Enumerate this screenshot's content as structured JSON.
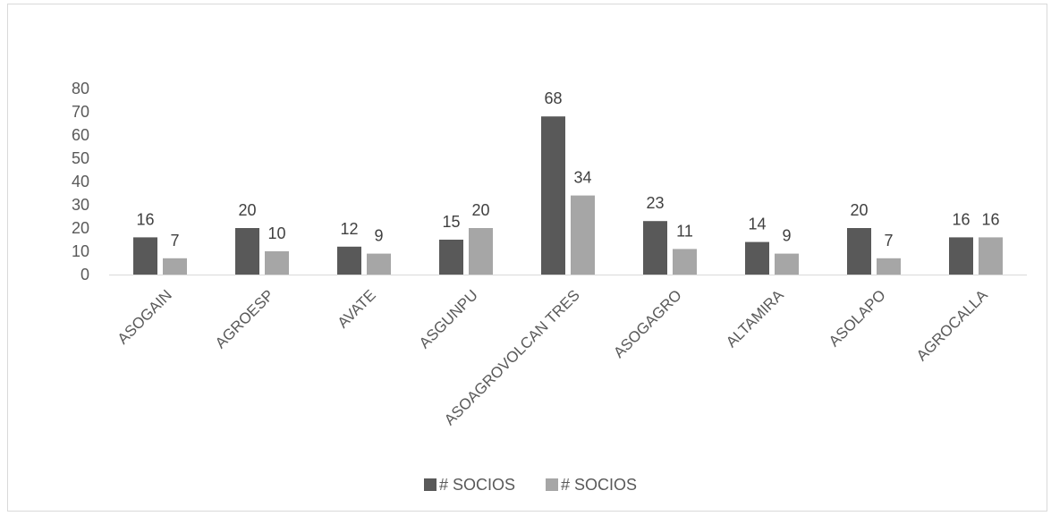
{
  "chart_data": {
    "type": "bar",
    "title": "",
    "xlabel": "",
    "ylabel": "",
    "ylim": [
      0,
      80
    ],
    "yticks": [
      0,
      10,
      20,
      30,
      40,
      50,
      60,
      70,
      80
    ],
    "grid": false,
    "legend_position": "bottom",
    "categories": [
      "ASOGAIN",
      "AGROESP",
      "AVATE",
      "ASGUNPU",
      "ASOAGROVOLCAN TRES",
      "ASOGAGRO",
      "ALTAMIRA",
      "ASOLAPO",
      "AGROCALLA"
    ],
    "series": [
      {
        "name": "# SOCIOS",
        "color": "#595959",
        "values": [
          16,
          20,
          12,
          15,
          68,
          23,
          14,
          20,
          16
        ]
      },
      {
        "name": "# SOCIOS",
        "color": "#a6a6a6",
        "values": [
          7,
          10,
          9,
          20,
          34,
          11,
          9,
          7,
          16
        ]
      }
    ]
  }
}
